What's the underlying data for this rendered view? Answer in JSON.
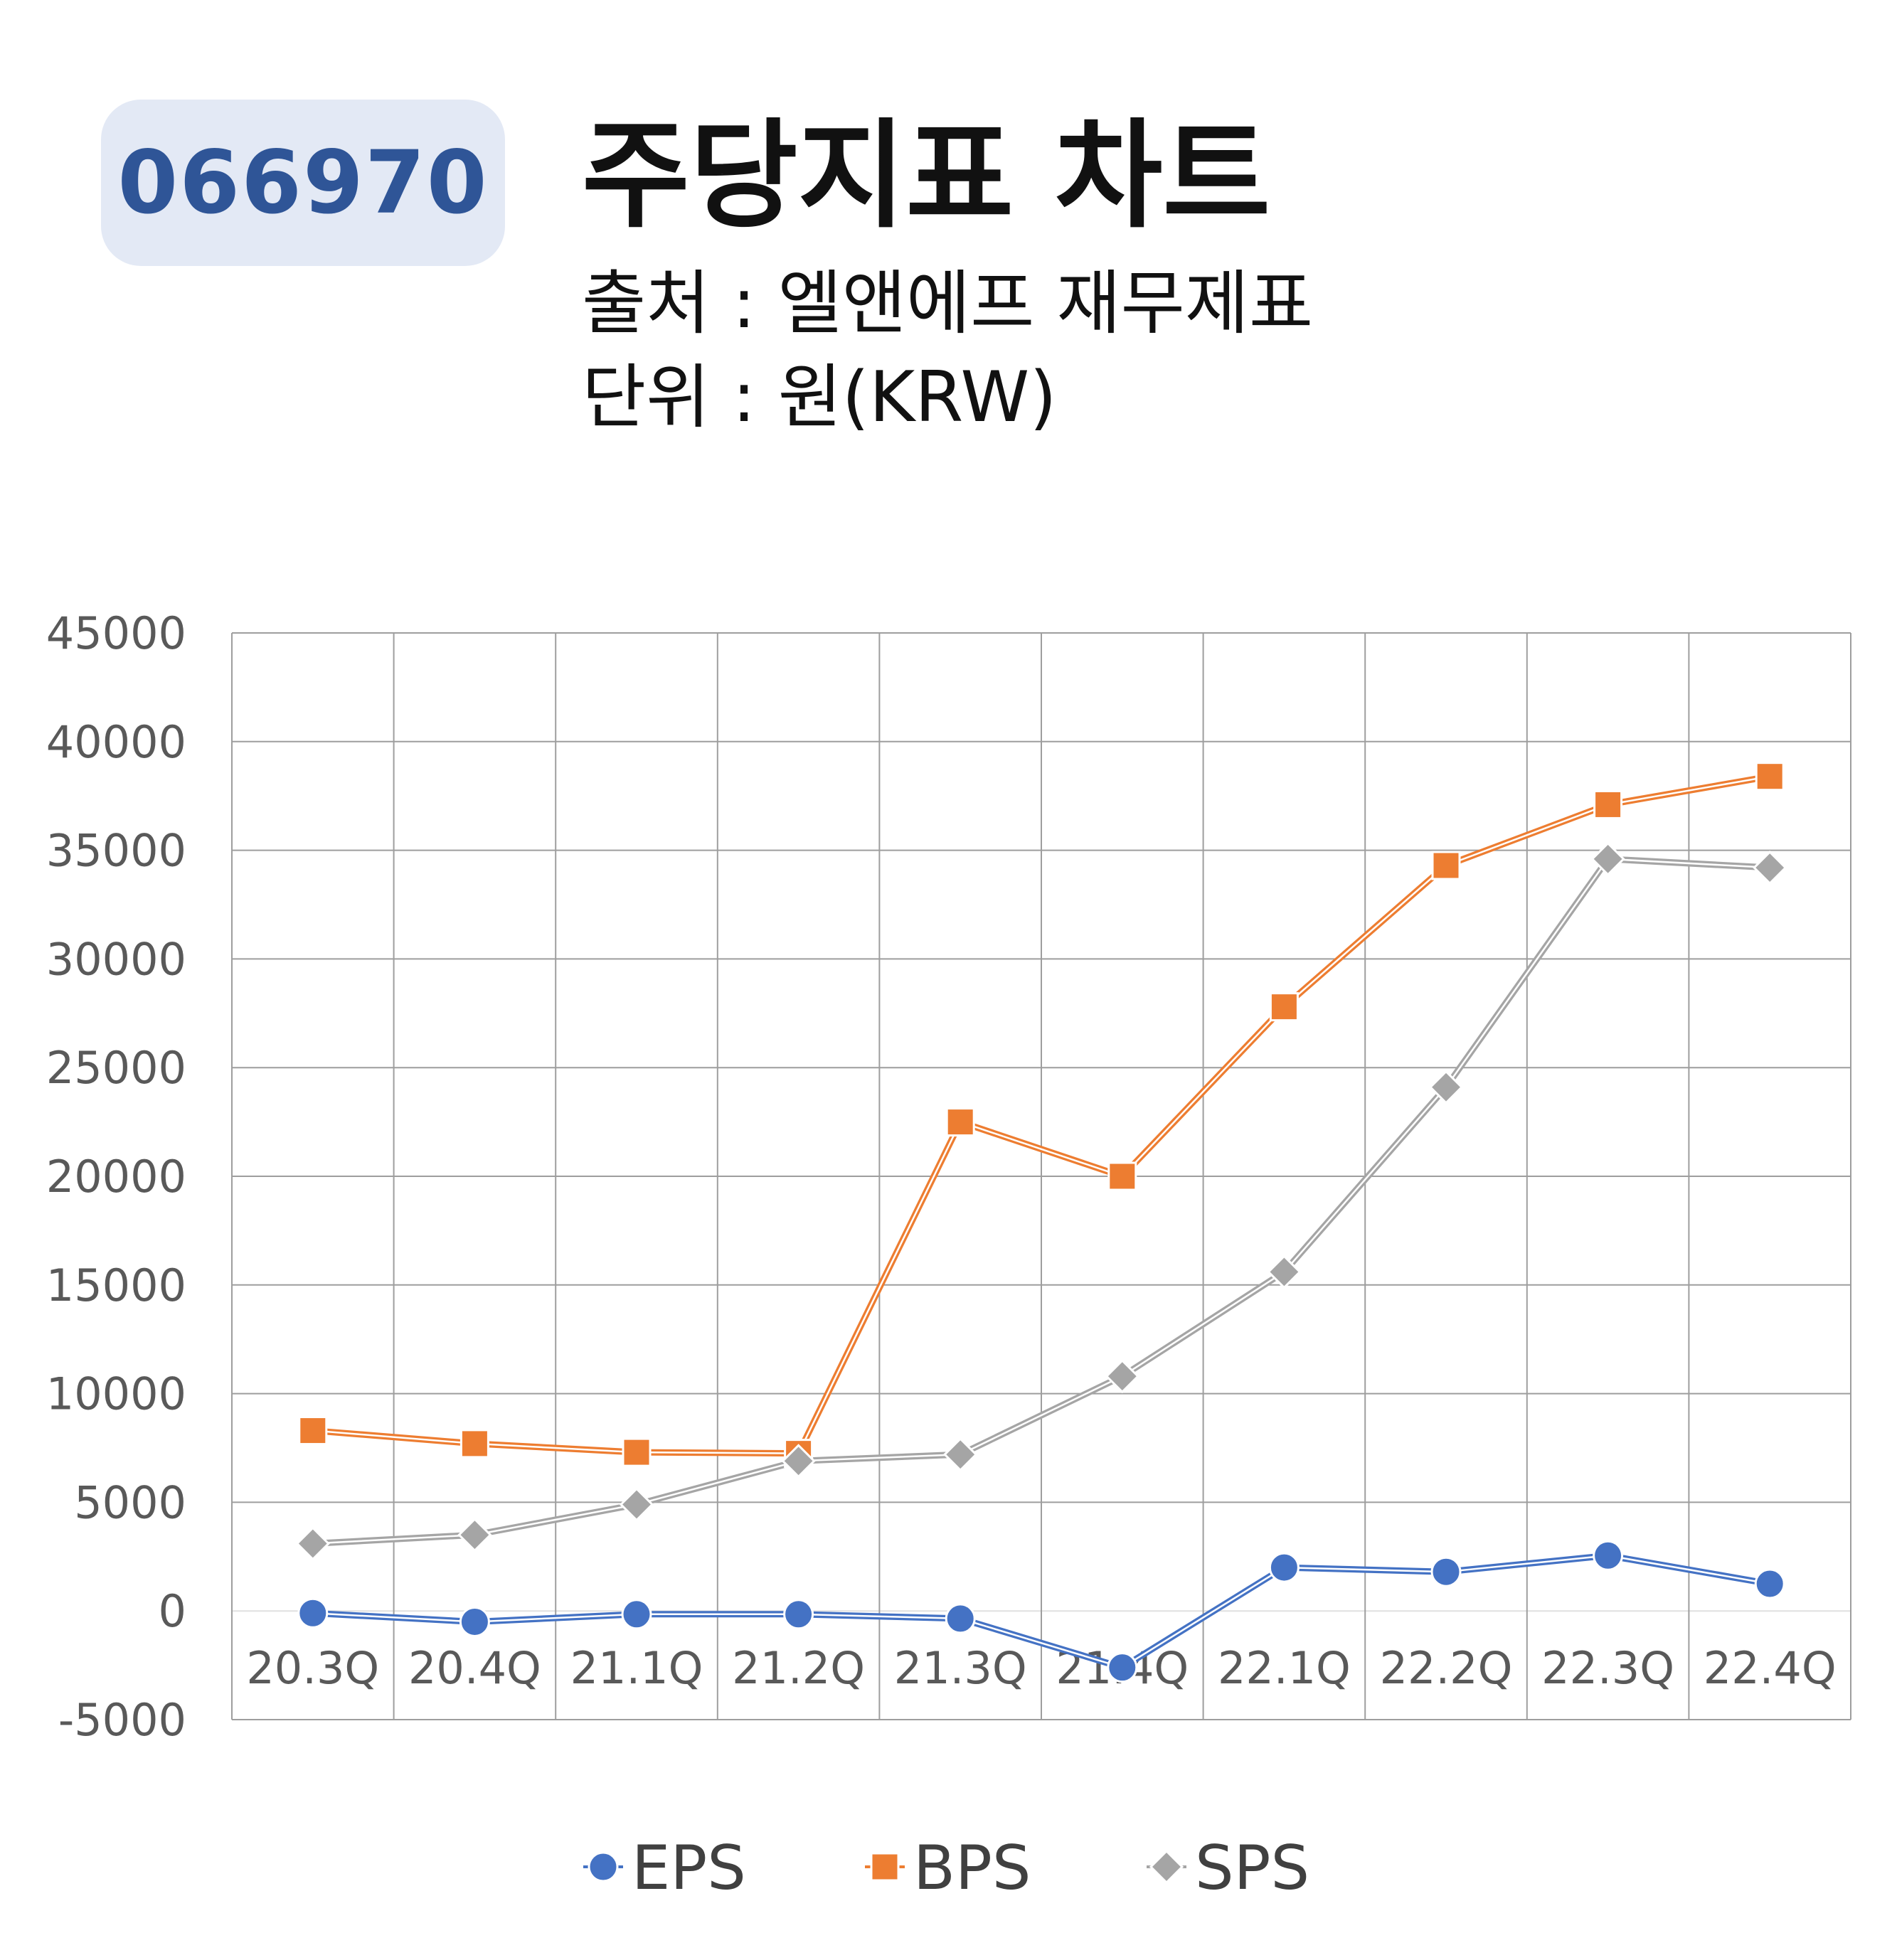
{
  "header": {
    "code": "066970",
    "title": "주당지표 차트",
    "source": "출처 : 엘앤에프 재무제표",
    "unit": "단위 : 원(KRW)"
  },
  "colors": {
    "EPS": "#4472c4",
    "BPS": "#ed7d31",
    "SPS": "#a5a5a5"
  },
  "chart_data": {
    "type": "line",
    "categories": [
      "20.3Q",
      "20.4Q",
      "21.1Q",
      "21.2Q",
      "21.3Q",
      "21.4Q",
      "22.1Q",
      "22.2Q",
      "22.3Q",
      "22.4Q"
    ],
    "ylim": [
      -5000,
      45000
    ],
    "yticks": [
      45000,
      40000,
      35000,
      30000,
      25000,
      20000,
      15000,
      10000,
      5000,
      0,
      -5000
    ],
    "grid": true,
    "legend": "bottom",
    "series": [
      {
        "name": "EPS",
        "marker": "circle",
        "values": [
          -100,
          -500,
          -150,
          -150,
          -350,
          -2600,
          2000,
          1800,
          2550,
          1250
        ]
      },
      {
        "name": "BPS",
        "marker": "square",
        "values": [
          8300,
          7700,
          7300,
          7250,
          22500,
          20000,
          27800,
          34300,
          37100,
          38400
        ]
      },
      {
        "name": "SPS",
        "marker": "diamond",
        "values": [
          3100,
          3500,
          4900,
          6900,
          7200,
          10800,
          15600,
          24100,
          34600,
          34200
        ]
      }
    ]
  }
}
